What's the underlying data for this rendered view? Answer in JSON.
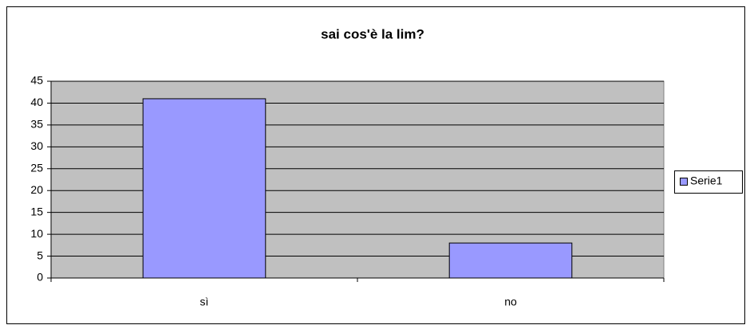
{
  "chart_data": {
    "type": "bar",
    "title": "sai cos'è la lim?",
    "categories": [
      "sì",
      "no"
    ],
    "series": [
      {
        "name": "Serie1",
        "color": "#9999ff",
        "values": [
          41,
          8
        ]
      }
    ],
    "ylim": [
      0,
      45
    ],
    "yticks": [
      0,
      5,
      10,
      15,
      20,
      25,
      30,
      35,
      40,
      45
    ],
    "grid": true,
    "legend": "right"
  }
}
